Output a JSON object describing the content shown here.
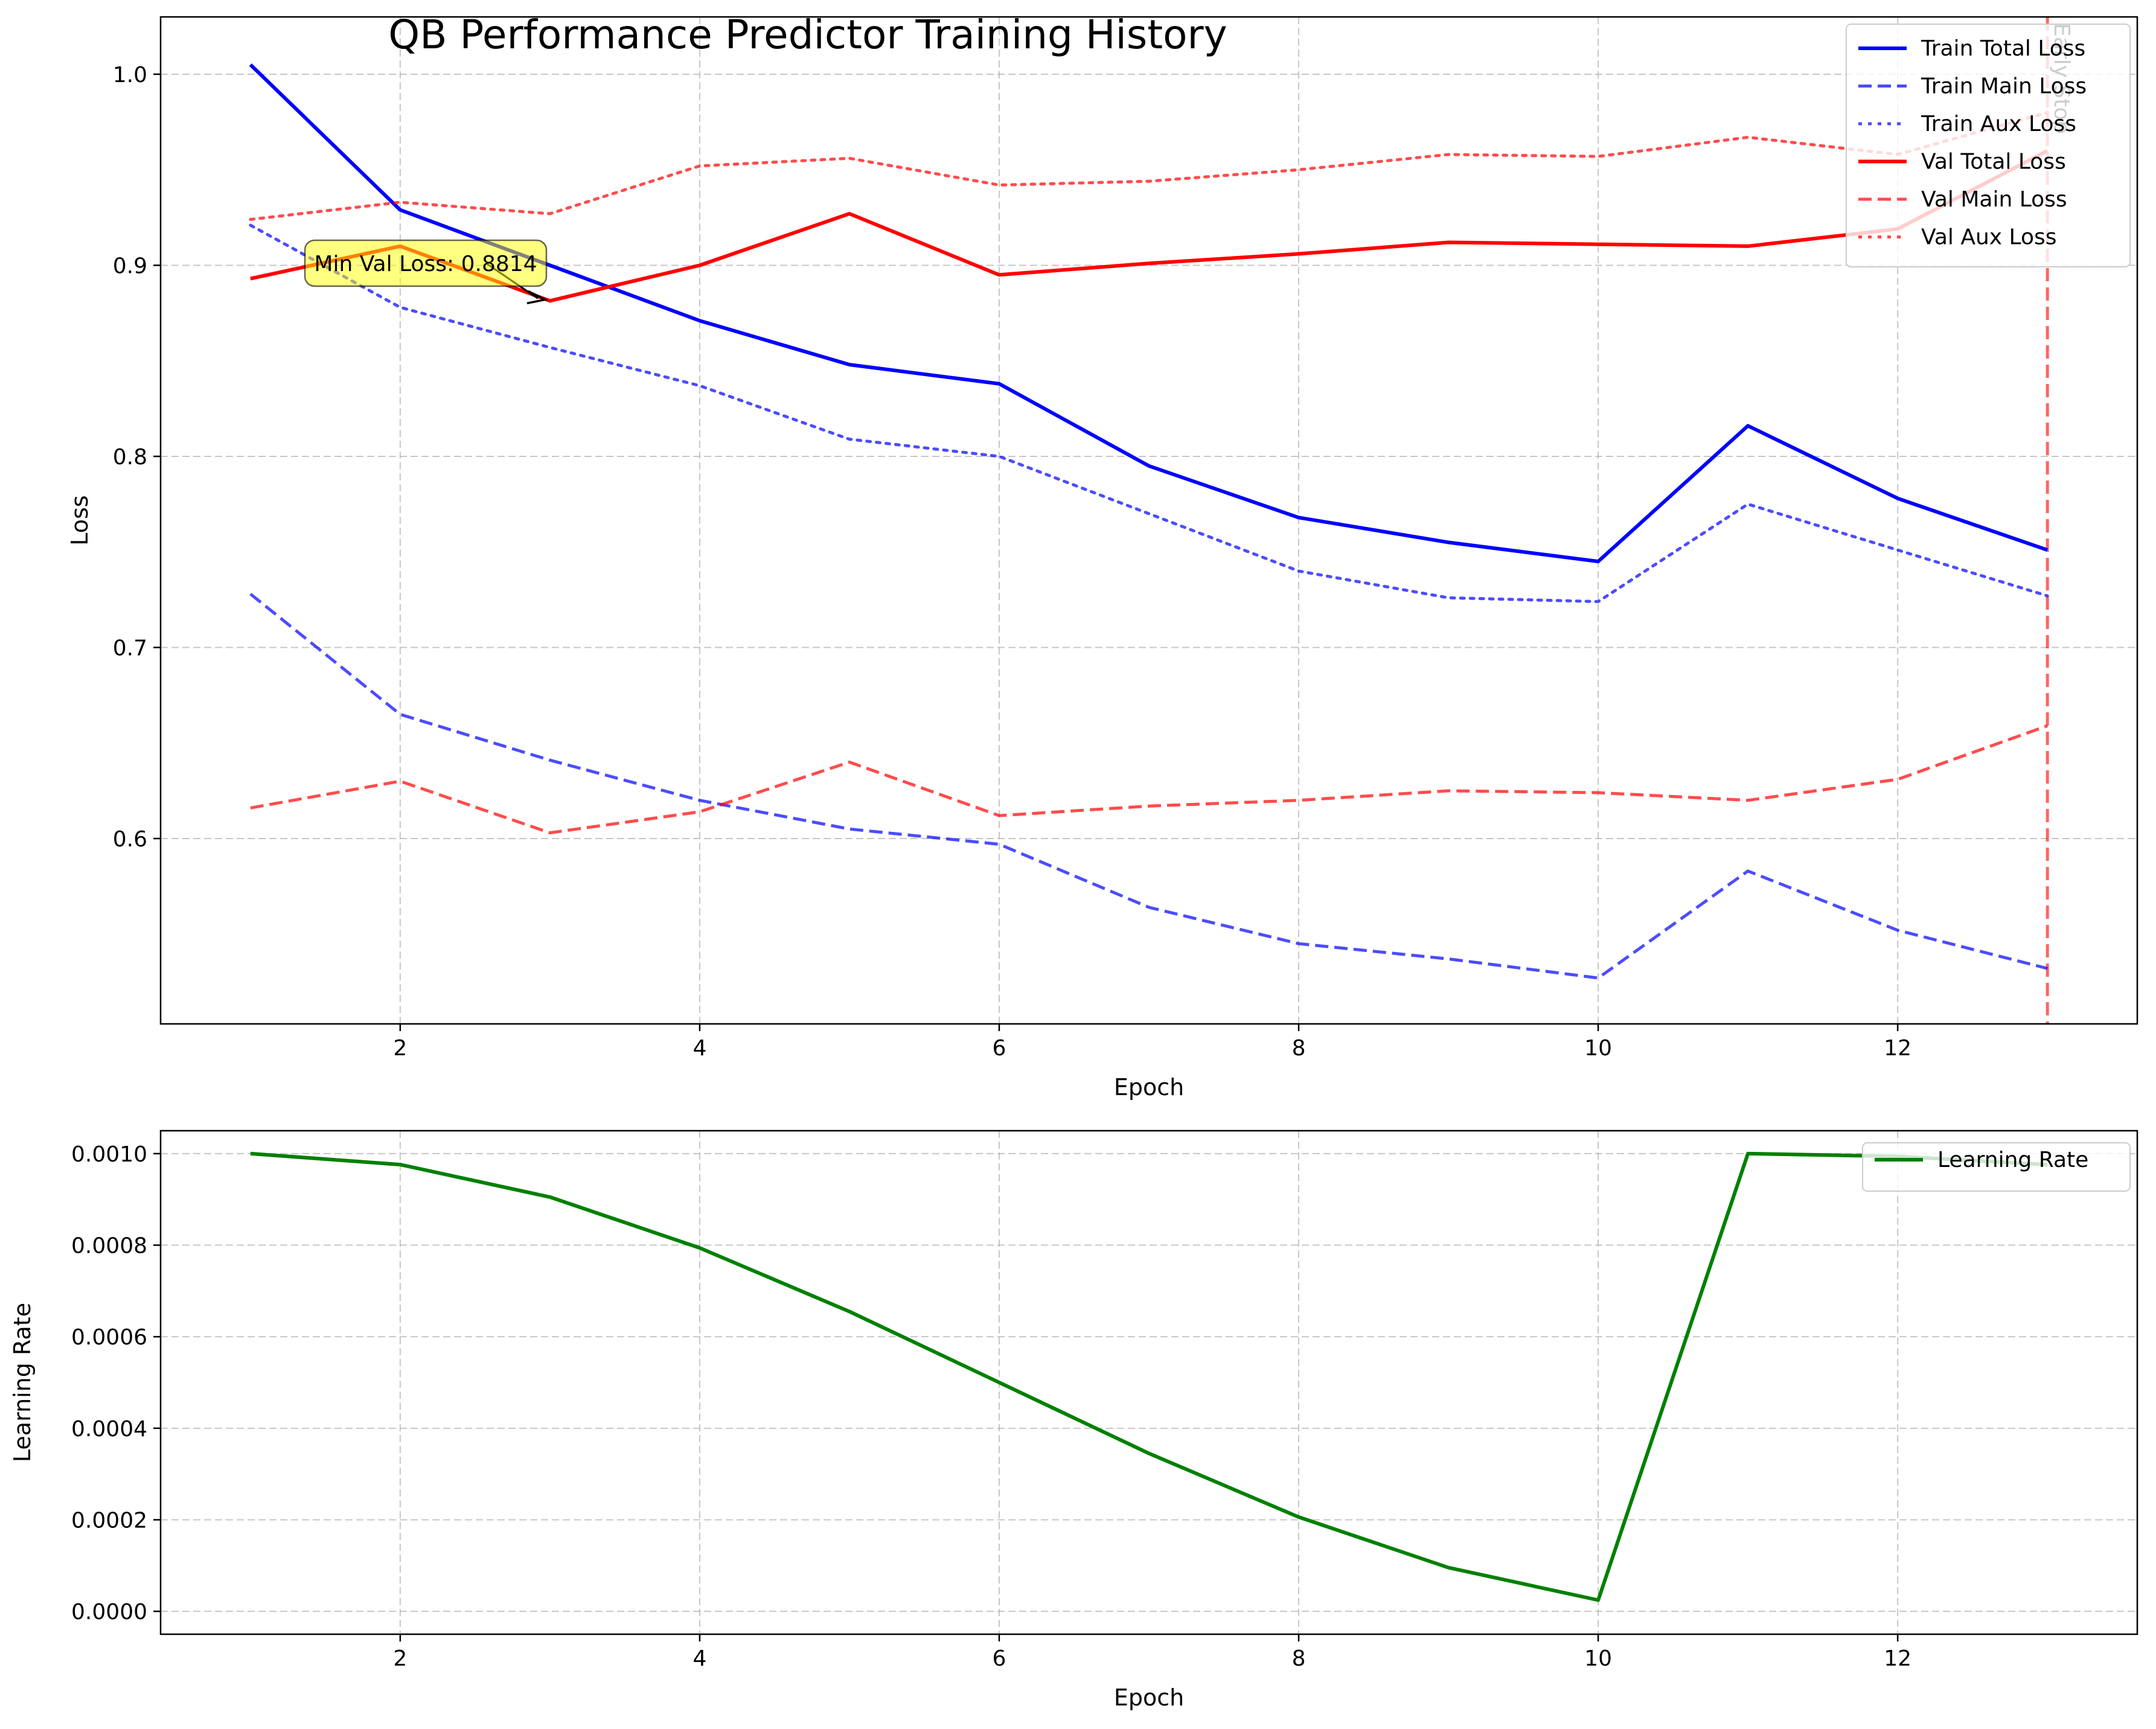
{
  "figure": {
    "title": "QB Performance Predictor Training History"
  },
  "chart_data": [
    {
      "type": "line",
      "title": "QB Performance Predictor Training History",
      "xlabel": "Epoch",
      "ylabel": "Loss",
      "xlim": [
        0.4,
        13.6
      ],
      "ylim": [
        0.503,
        1.03
      ],
      "xticks": [
        2,
        4,
        6,
        8,
        10,
        12
      ],
      "yticks": [
        0.6,
        0.7,
        0.8,
        0.9,
        1.0
      ],
      "tick_labels_x": [
        "2",
        "4",
        "6",
        "8",
        "10",
        "12"
      ],
      "tick_labels_y": [
        "0.6",
        "0.7",
        "0.8",
        "0.9",
        "1.0"
      ],
      "grid": true,
      "legend_position": "top-right",
      "x": [
        1,
        2,
        3,
        4,
        5,
        6,
        7,
        8,
        9,
        10,
        11,
        12,
        13
      ],
      "series": [
        {
          "name": "Train Total Loss",
          "color": "#0000ff",
          "style": "solid",
          "width": 6,
          "opacity": 1.0,
          "values": [
            1.005,
            0.929,
            0.9,
            0.871,
            0.848,
            0.838,
            0.795,
            0.768,
            0.755,
            0.745,
            0.816,
            0.778,
            0.751
          ]
        },
        {
          "name": "Train Main Loss",
          "color": "#0000ff",
          "style": "dashed",
          "width": 5,
          "opacity": 0.7,
          "values": [
            0.728,
            0.665,
            0.641,
            0.62,
            0.605,
            0.597,
            0.564,
            0.545,
            0.537,
            0.527,
            0.583,
            0.552,
            0.532
          ]
        },
        {
          "name": "Train Aux Loss",
          "color": "#0000ff",
          "style": "dotted",
          "width": 5,
          "opacity": 0.7,
          "values": [
            0.921,
            0.878,
            0.857,
            0.837,
            0.809,
            0.8,
            0.77,
            0.74,
            0.726,
            0.724,
            0.775,
            0.751,
            0.727
          ]
        },
        {
          "name": "Val Total Loss",
          "color": "#ff0000",
          "style": "solid",
          "width": 6,
          "opacity": 1.0,
          "values": [
            0.893,
            0.91,
            0.8814,
            0.9,
            0.927,
            0.895,
            0.901,
            0.906,
            0.912,
            0.911,
            0.91,
            0.919,
            0.96
          ]
        },
        {
          "name": "Val Main Loss",
          "color": "#ff0000",
          "style": "dashed",
          "width": 5,
          "opacity": 0.7,
          "values": [
            0.616,
            0.63,
            0.603,
            0.614,
            0.64,
            0.612,
            0.617,
            0.62,
            0.625,
            0.624,
            0.62,
            0.631,
            0.659
          ]
        },
        {
          "name": "Val Aux Loss",
          "color": "#ff0000",
          "style": "dotted",
          "width": 5,
          "opacity": 0.7,
          "values": [
            0.924,
            0.933,
            0.927,
            0.952,
            0.956,
            0.942,
            0.944,
            0.95,
            0.958,
            0.957,
            0.967,
            0.958,
            0.98
          ]
        }
      ],
      "annotations": [
        {
          "text": "Min Val Loss: 0.8814",
          "x": 3,
          "y": 0.8814,
          "box_color": "#ffff00",
          "box_opacity": 0.5
        }
      ],
      "vlines": [
        {
          "x": 13,
          "color": "#ff0000",
          "style": "dashed",
          "opacity": 0.6,
          "label": "Early Stop"
        }
      ]
    },
    {
      "type": "line",
      "title": "",
      "xlabel": "Epoch",
      "ylabel": "Learning Rate",
      "xlim": [
        0.4,
        13.6
      ],
      "ylim": [
        -5e-05,
        0.00105
      ],
      "xticks": [
        2,
        4,
        6,
        8,
        10,
        12
      ],
      "yticks": [
        0.0,
        0.0002,
        0.0004,
        0.0006,
        0.0008,
        0.001
      ],
      "tick_labels_x": [
        "2",
        "4",
        "6",
        "8",
        "10",
        "12"
      ],
      "tick_labels_y": [
        "0.0000",
        "0.0002",
        "0.0004",
        "0.0006",
        "0.0008",
        "0.0010"
      ],
      "grid": true,
      "legend_position": "top-right",
      "x": [
        1,
        2,
        3,
        4,
        5,
        6,
        7,
        8,
        9,
        10,
        11,
        12,
        13
      ],
      "series": [
        {
          "name": "Learning Rate",
          "color": "#008000",
          "style": "solid",
          "width": 6,
          "opacity": 1.0,
          "values": [
            0.001,
            0.000976,
            0.000905,
            0.000794,
            0.000655,
            0.0005,
            0.000345,
            0.000206,
            9.55e-05,
            2.45e-05,
            0.001,
            0.000994,
            0.000976
          ]
        }
      ]
    }
  ]
}
